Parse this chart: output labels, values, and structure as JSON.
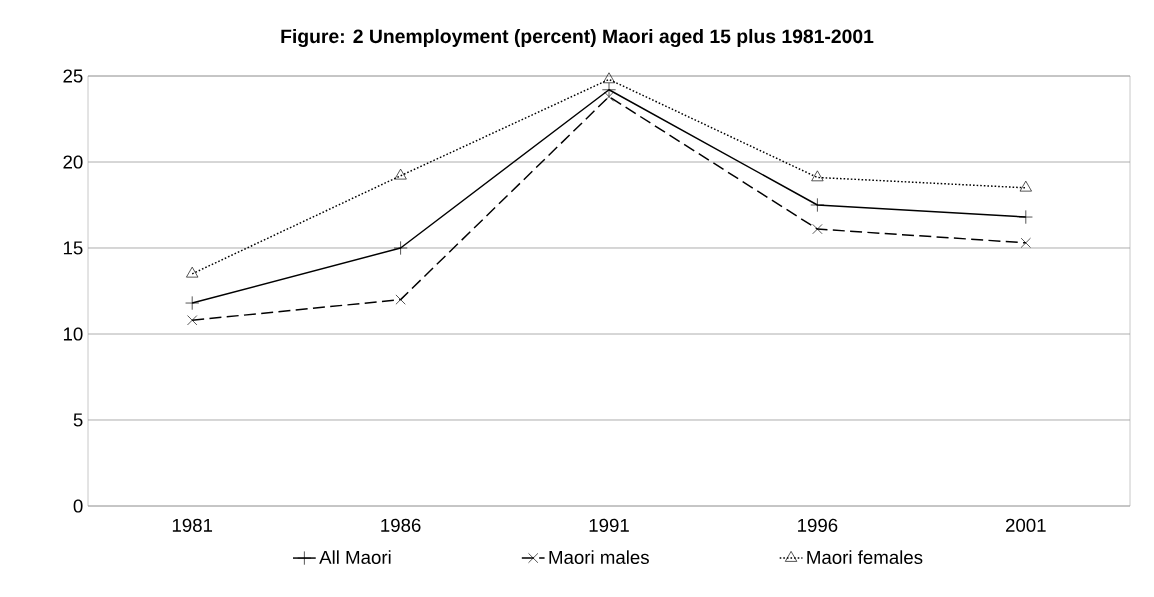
{
  "chart_data": {
    "type": "line",
    "title": "Figure: 2 Unemployment (percent) Maori aged 15 plus 1981-2001",
    "categories": [
      "1981",
      "1986",
      "1991",
      "1996",
      "2001"
    ],
    "series": [
      {
        "name": "All Maori",
        "color": "#000000",
        "values": [
          11.8,
          15.0,
          24.2,
          17.5,
          16.8
        ],
        "marker": "plus",
        "line_style": "solid"
      },
      {
        "name": "Maori males",
        "color": "#000000",
        "values": [
          10.8,
          12.0,
          23.8,
          16.1,
          15.3
        ],
        "marker": "cross",
        "line_style": "dashed"
      },
      {
        "name": "Maori females",
        "color": "#000000",
        "values": [
          13.5,
          19.2,
          24.8,
          19.1,
          18.5
        ],
        "marker": "triangle",
        "line_style": "dotted"
      }
    ],
    "ylim": [
      0,
      25
    ],
    "yticks": [
      0,
      5,
      10,
      15,
      20,
      25
    ],
    "grid": "y",
    "legend": "bottom"
  }
}
